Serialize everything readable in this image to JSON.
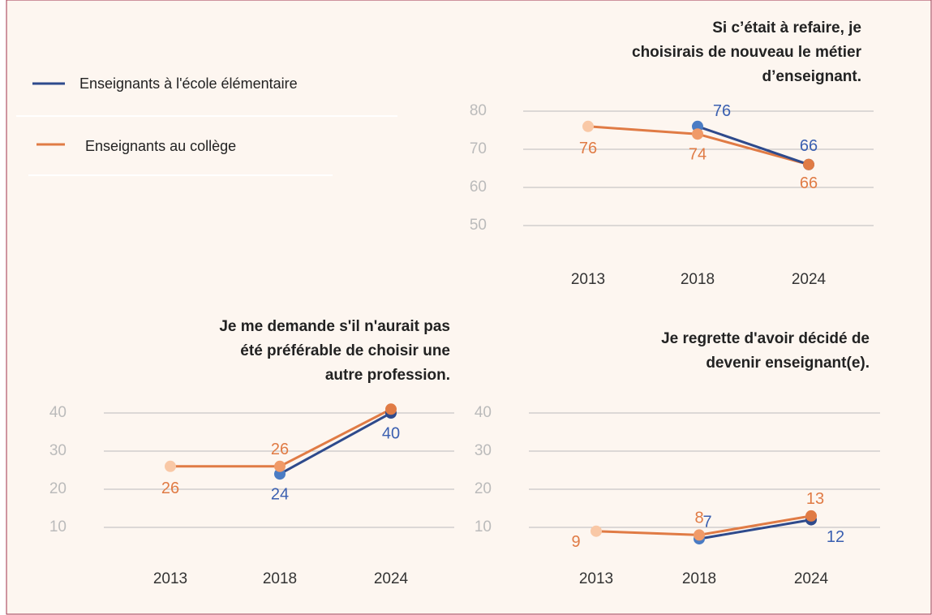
{
  "chart_data": [
    {
      "type": "line",
      "title": [
        "Si c’était à refaire, je",
        "choisirais de nouveau le métier",
        "d’enseignant."
      ],
      "categories": [
        "2013",
        "2018",
        "2024"
      ],
      "series": [
        {
          "name": "Enseignants à l'école élémentaire",
          "color": "#2e4a8c",
          "label_color": "#3a5fb0",
          "point_colors": [
            null,
            "#4a7cc4",
            "#2e4a8c"
          ],
          "values": [
            null,
            76,
            66
          ]
        },
        {
          "name": "Enseignants au collège",
          "color": "#e07b45",
          "label_color": "#e07b45",
          "point_colors": [
            "#f9c8a6",
            "#f09a68",
            "#e07b45"
          ],
          "values": [
            76,
            74,
            66
          ]
        }
      ],
      "ylim": [
        45,
        85
      ],
      "yticks": [
        50,
        60,
        70,
        80
      ],
      "grid": true
    },
    {
      "type": "line",
      "title": [
        "Je me demande s'il n'aurait pas",
        "été préférable de choisir une",
        "autre profession."
      ],
      "categories": [
        "2013",
        "2018",
        "2024"
      ],
      "series": [
        {
          "name": "Enseignants à l'école élémentaire",
          "color": "#2e4a8c",
          "label_color": "#3a5fb0",
          "point_colors": [
            null,
            "#4a7cc4",
            "#2e4a8c"
          ],
          "values": [
            null,
            24,
            40
          ]
        },
        {
          "name": "Enseignants au collège",
          "color": "#e07b45",
          "label_color": "#e07b45",
          "point_colors": [
            "#f9c8a6",
            "#f09a68",
            "#e07b45"
          ],
          "values": [
            26,
            26,
            41
          ],
          "value_labels": [
            "26",
            "26",
            null
          ]
        }
      ],
      "ylim": [
        5,
        45
      ],
      "yticks": [
        10,
        20,
        30,
        40
      ],
      "grid": true
    },
    {
      "type": "line",
      "title": [
        "Je regrette d'avoir décidé de",
        "devenir enseignant(e)."
      ],
      "categories": [
        "2013",
        "2018",
        "2024"
      ],
      "series": [
        {
          "name": "Enseignants à l'école élémentaire",
          "color": "#2e4a8c",
          "label_color": "#3a5fb0",
          "point_colors": [
            null,
            "#4a7cc4",
            "#2e4a8c"
          ],
          "values": [
            null,
            7,
            12
          ]
        },
        {
          "name": "Enseignants au collège",
          "color": "#e07b45",
          "label_color": "#e07b45",
          "point_colors": [
            "#f9c8a6",
            "#f09a68",
            "#e07b45"
          ],
          "values": [
            9,
            8,
            13
          ]
        }
      ],
      "ylim": [
        5,
        45
      ],
      "yticks": [
        10,
        20,
        30,
        40
      ],
      "grid": true
    }
  ]
}
